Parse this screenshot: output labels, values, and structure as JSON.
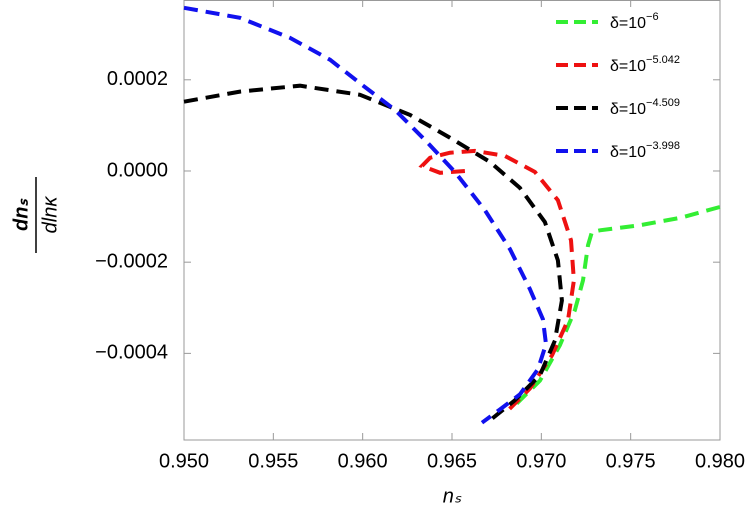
{
  "chart_data": {
    "type": "line",
    "x_label": "nₛ",
    "y_label_numerator": "dnₛ",
    "y_label_denominator": "dlnκ",
    "xlim": [
      0.95,
      0.98
    ],
    "ylim": [
      -0.00059,
      0.000375
    ],
    "xticks": [
      {
        "value": 0.95,
        "label": "0.950"
      },
      {
        "value": 0.955,
        "label": "0.955"
      },
      {
        "value": 0.96,
        "label": "0.960"
      },
      {
        "value": 0.965,
        "label": "0.965"
      },
      {
        "value": 0.97,
        "label": "0.970"
      },
      {
        "value": 0.975,
        "label": "0.975"
      },
      {
        "value": 0.98,
        "label": "0.980"
      }
    ],
    "yticks": [
      {
        "value": -0.0004,
        "label": "−0.0004"
      },
      {
        "value": -0.0002,
        "label": "−0.0002"
      },
      {
        "value": 0,
        "label": "0.0000"
      },
      {
        "value": 0.0002,
        "label": "0.0002"
      }
    ],
    "legend_position": "upper right",
    "series": [
      {
        "name": "δ=10",
        "exponent": "−6",
        "color": "#33ee33",
        "x": [
          0.97999,
          0.97776,
          0.97552,
          0.97328,
          0.97283,
          0.97261,
          0.97233,
          0.97188,
          0.97104,
          0.96992,
          0.96852
        ],
        "values": [
          -7.9e-05,
          -0.000103,
          -0.000119,
          -0.00013,
          -0.000134,
          -0.000163,
          -0.00024,
          -0.000305,
          -0.000382,
          -0.00046,
          -0.000514
        ]
      },
      {
        "name": "δ=10",
        "exponent": "−5.042",
        "color": "#ee1111",
        "x": [
          0.96572,
          0.96433,
          0.96332,
          0.96377,
          0.96489,
          0.96628,
          0.96796,
          0.96964,
          0.97093,
          0.97166,
          0.97182,
          0.97149,
          0.9706,
          0.96936,
          0.96796
        ],
        "values": [
          0,
          -4e-06,
          1.1e-05,
          2.9e-05,
          4e-05,
          4.4e-05,
          3.3e-05,
          -2e-06,
          -6.4e-05,
          -0.000152,
          -0.00024,
          -0.000327,
          -0.000404,
          -0.000477,
          -0.000532
        ]
      },
      {
        "name": "δ=10",
        "exponent": "−4.509",
        "color": "#000000",
        "x": [
          0.95,
          0.95313,
          0.95649,
          0.95985,
          0.96265,
          0.96489,
          0.96712,
          0.9688,
          0.9702,
          0.97093,
          0.97115,
          0.97076,
          0.96992,
          0.96852,
          0.96712
        ],
        "values": [
          0.000152,
          0.000174,
          0.000187,
          0.000167,
          0.000123,
          7.3e-05,
          2e-05,
          -3.7e-05,
          -0.000112,
          -0.000196,
          -0.000284,
          -0.000372,
          -0.000448,
          -0.000503,
          -0.000547
        ]
      },
      {
        "name": "δ=10",
        "exponent": "−3.998",
        "color": "#1111ee",
        "x": [
          0.95,
          0.95313,
          0.95593,
          0.95817,
          0.95996,
          0.96181,
          0.96349,
          0.96516,
          0.96684,
          0.96824,
          0.96936,
          0.97009,
          0.97026,
          0.96981,
          0.9688,
          0.96768,
          0.96668
        ],
        "values": [
          0.000358,
          0.000336,
          0.000292,
          0.000244,
          0.000189,
          0.000134,
          6.8e-05,
          -2e-06,
          -8.6e-05,
          -0.000171,
          -0.000259,
          -0.000325,
          -0.00038,
          -0.000435,
          -0.00049,
          -0.000523,
          -0.000552
        ]
      }
    ]
  }
}
